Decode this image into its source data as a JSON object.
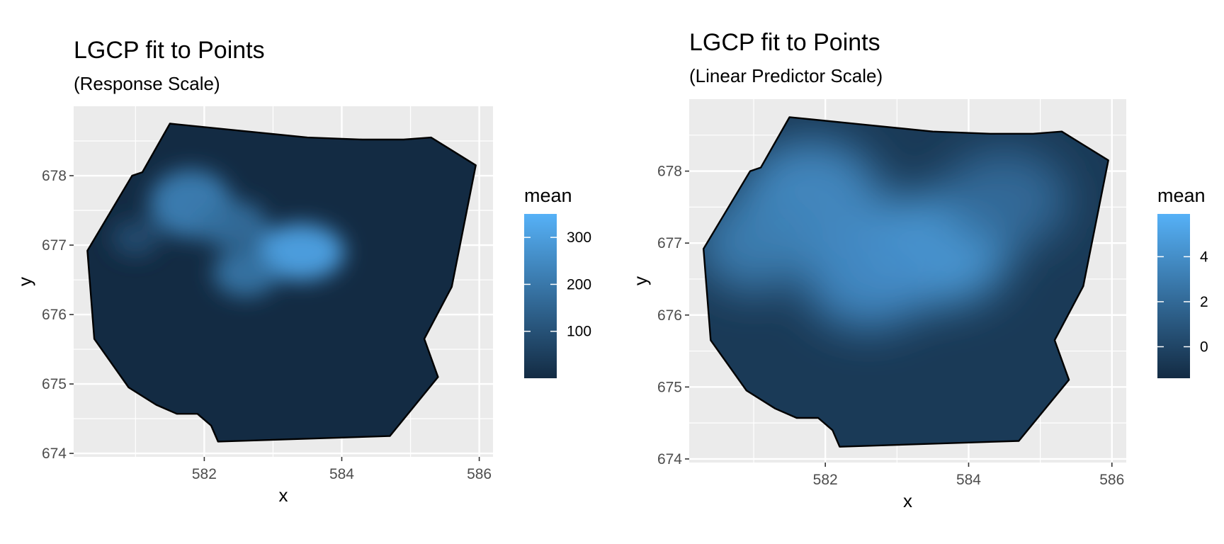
{
  "chart_data": [
    {
      "type": "heatmap",
      "title": "LGCP fit to Points",
      "subtitle": "(Response Scale)",
      "xlabel": "x",
      "ylabel": "y",
      "xlim": [
        580.1,
        586.2
      ],
      "ylim": [
        673.95,
        679.0
      ],
      "x_ticks": [
        582,
        584,
        586
      ],
      "y_ticks": [
        674,
        675,
        676,
        677,
        678
      ],
      "grid": true,
      "legend": {
        "title": "mean",
        "position": "right",
        "ticks": [
          100,
          200,
          300
        ],
        "range": [
          0,
          350
        ]
      },
      "colors": {
        "low": "#132B43",
        "high": "#56B1F7",
        "panel": "#EBEBEB"
      },
      "boundary": [
        [
          581.5,
          678.75
        ],
        [
          582.5,
          678.65
        ],
        [
          583.5,
          678.55
        ],
        [
          584.3,
          678.52
        ],
        [
          584.9,
          678.52
        ],
        [
          585.3,
          678.55
        ],
        [
          585.95,
          678.15
        ],
        [
          585.6,
          676.4
        ],
        [
          585.2,
          675.65
        ],
        [
          585.4,
          675.1
        ],
        [
          584.7,
          674.25
        ],
        [
          582.2,
          674.17
        ],
        [
          582.1,
          674.4
        ],
        [
          581.9,
          674.57
        ],
        [
          581.6,
          674.57
        ],
        [
          581.3,
          674.7
        ],
        [
          580.9,
          674.95
        ],
        [
          580.4,
          675.65
        ],
        [
          580.3,
          676.92
        ],
        [
          580.95,
          678.0
        ],
        [
          581.1,
          678.05
        ]
      ],
      "intensity_peaks": [
        {
          "x": 583.4,
          "y": 676.9,
          "value": 330
        },
        {
          "x": 581.8,
          "y": 677.6,
          "value": 230
        },
        {
          "x": 582.6,
          "y": 676.6,
          "value": 200
        },
        {
          "x": 582.4,
          "y": 677.3,
          "value": 180
        },
        {
          "x": 581.0,
          "y": 677.1,
          "value": 90
        }
      ]
    },
    {
      "type": "heatmap",
      "title": "LGCP fit to Points",
      "subtitle": "(Linear Predictor Scale)",
      "xlabel": "x",
      "ylabel": "y",
      "xlim": [
        580.1,
        586.2
      ],
      "ylim": [
        673.95,
        679.0
      ],
      "x_ticks": [
        582,
        584,
        586
      ],
      "y_ticks": [
        674,
        675,
        676,
        677,
        678
      ],
      "grid": true,
      "legend": {
        "title": "mean",
        "position": "right",
        "ticks": [
          0,
          2,
          4
        ],
        "range": [
          -1.4,
          5.9
        ]
      },
      "colors": {
        "low": "#132B43",
        "high": "#56B1F7",
        "panel": "#EBEBEB"
      },
      "boundary": [
        [
          581.5,
          678.75
        ],
        [
          582.5,
          678.65
        ],
        [
          583.5,
          678.55
        ],
        [
          584.3,
          678.52
        ],
        [
          584.9,
          678.52
        ],
        [
          585.3,
          678.55
        ],
        [
          585.95,
          678.15
        ],
        [
          585.6,
          676.4
        ],
        [
          585.2,
          675.65
        ],
        [
          585.4,
          675.1
        ],
        [
          584.7,
          674.25
        ],
        [
          582.2,
          674.17
        ],
        [
          582.1,
          674.4
        ],
        [
          581.9,
          674.57
        ],
        [
          581.6,
          674.57
        ],
        [
          581.3,
          674.7
        ],
        [
          580.9,
          674.95
        ],
        [
          580.4,
          675.65
        ],
        [
          580.3,
          676.92
        ],
        [
          580.95,
          678.0
        ],
        [
          581.1,
          678.05
        ]
      ],
      "intensity_peaks": [
        {
          "x": 583.5,
          "y": 676.9,
          "value": 4.8
        },
        {
          "x": 581.8,
          "y": 677.6,
          "value": 4.0
        },
        {
          "x": 582.6,
          "y": 676.5,
          "value": 3.9
        },
        {
          "x": 581.0,
          "y": 677.0,
          "value": 3.2
        },
        {
          "x": 584.5,
          "y": 677.6,
          "value": 2.2
        }
      ]
    }
  ]
}
